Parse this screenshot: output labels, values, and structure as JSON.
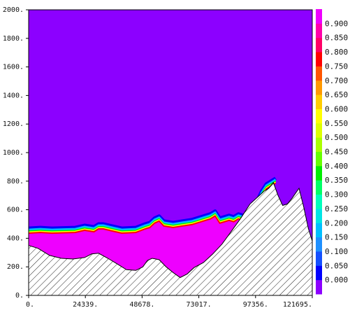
{
  "chart_data": {
    "type": "heatmap",
    "title": "",
    "xlabel": "",
    "ylabel": "",
    "xlim": [
      0,
      121695
    ],
    "ylim": [
      0,
      2000
    ],
    "x_tick_labels": [
      "0.",
      "24339.",
      "48678.",
      "73017.",
      "97356.",
      "121695."
    ],
    "x_tick_values": [
      0,
      24339,
      48678,
      73017,
      97356,
      121695
    ],
    "y_tick_labels": [
      "0.",
      "200.",
      "400.",
      "600.",
      "800.",
      "1000.",
      "1200.",
      "1400.",
      "1600.",
      "1800.",
      "2000."
    ],
    "y_tick_values": [
      0,
      200,
      400,
      600,
      800,
      1000,
      1200,
      1400,
      1600,
      1800,
      2000
    ],
    "background_value": 0.0,
    "fill_value": 0.95,
    "colorbar": {
      "labels": [
        "0.000",
        "0.050",
        "0.100",
        "0.150",
        "0.200",
        "0.250",
        "0.300",
        "0.350",
        "0.400",
        "0.450",
        "0.500",
        "0.550",
        "0.600",
        "0.650",
        "0.700",
        "0.750",
        "0.800",
        "0.850",
        "0.900"
      ],
      "colors": [
        "#8c00ff",
        "#0000ff",
        "#1450ff",
        "#1e90ff",
        "#00bfff",
        "#00e5e5",
        "#00ffbb",
        "#00ff66",
        "#00ee00",
        "#66ff00",
        "#aaff00",
        "#ddff00",
        "#ffff00",
        "#ffcc00",
        "#ff9900",
        "#ff5500",
        "#ff0000",
        "#ff0066",
        "#ff00aa",
        "#ee00ff"
      ]
    },
    "terrain": {
      "x": [
        0,
        4000,
        9000,
        14000,
        19000,
        24000,
        27000,
        30000,
        34000,
        38000,
        42000,
        46000,
        49000,
        51000,
        53000,
        56000,
        59000,
        62000,
        65000,
        68000,
        71000,
        75000,
        79000,
        83000,
        87000,
        91000,
        95000,
        99000,
        101000,
        103000,
        105000,
        107000,
        109000,
        111000,
        113000,
        116000,
        118000,
        120000,
        121695
      ],
      "y": [
        350,
        330,
        280,
        260,
        255,
        265,
        290,
        295,
        260,
        220,
        180,
        175,
        200,
        245,
        260,
        250,
        200,
        160,
        125,
        150,
        195,
        230,
        290,
        360,
        450,
        540,
        640,
        700,
        730,
        750,
        790,
        700,
        630,
        640,
        680,
        750,
        620,
        470,
        380
      ]
    },
    "interface": {
      "x": [
        0,
        5000,
        10000,
        20000,
        24000,
        28000,
        30000,
        32000,
        36000,
        40000,
        46000,
        50000,
        52000,
        54000,
        56000,
        58000,
        62000,
        66000,
        70000,
        74000,
        78000,
        80000,
        82000,
        86000,
        88000,
        90000,
        92000,
        94000,
        96000,
        98000,
        100000,
        102000,
        104000,
        106000
      ],
      "y": [
        470,
        475,
        470,
        475,
        490,
        480,
        500,
        500,
        485,
        470,
        475,
        500,
        510,
        540,
        555,
        520,
        510,
        520,
        530,
        550,
        570,
        590,
        540,
        560,
        550,
        570,
        560,
        560,
        620,
        660,
        730,
        780,
        800,
        820
      ]
    }
  }
}
